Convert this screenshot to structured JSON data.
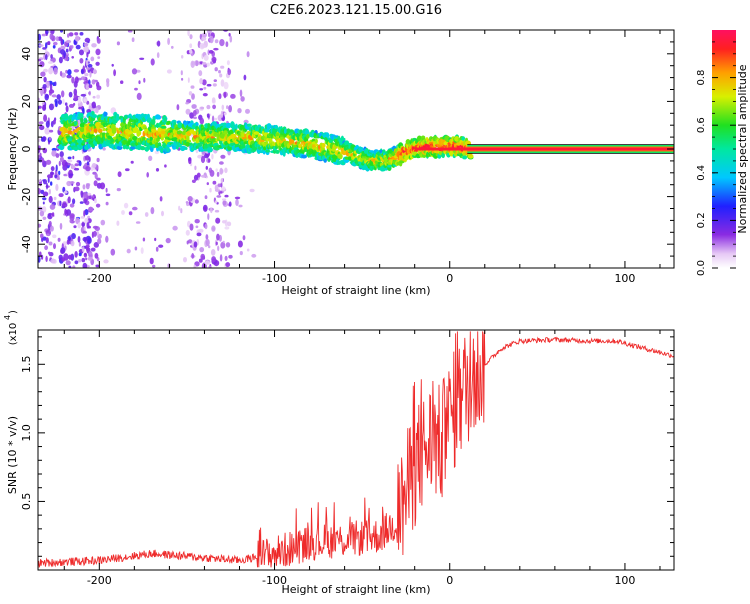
{
  "title": "C2E6.2023.121.15.00.G16",
  "colorbar": {
    "label": "Normalized spectral amplitude",
    "ticks": [
      {
        "value": 0.0,
        "label": "0.0"
      },
      {
        "value": 0.2,
        "label": "0.2"
      },
      {
        "value": 0.4,
        "label": "0.4"
      },
      {
        "value": 0.6,
        "label": "0.6"
      },
      {
        "value": 0.8,
        "label": "0.8"
      }
    ],
    "range": [
      0,
      1
    ],
    "colormap": "rainbow (white-violet to red)"
  },
  "chart_data": [
    {
      "type": "heatmap",
      "xlabel": "Height of straight line (km)",
      "ylabel": "Frequency (Hz)",
      "xlim": [
        -235,
        128
      ],
      "ylim": [
        -50,
        50
      ],
      "xticks": [
        {
          "value": -200,
          "label": "-200"
        },
        {
          "value": -100,
          "label": "-100"
        },
        {
          "value": 0,
          "label": "0"
        },
        {
          "value": 100,
          "label": "100"
        }
      ],
      "yticks": [
        {
          "value": -40,
          "label": "-40"
        },
        {
          "value": -20,
          "label": "-20"
        },
        {
          "value": 0,
          "label": "0"
        },
        {
          "value": 20,
          "label": "20"
        },
        {
          "value": 40,
          "label": "40"
        }
      ],
      "ridge": {
        "x": [
          -220,
          -200,
          -180,
          -160,
          -140,
          -120,
          -100,
          -80,
          -60,
          -45,
          -35,
          -25,
          -15,
          -5,
          5,
          10,
          128
        ],
        "y": [
          7,
          8,
          7,
          6,
          5,
          5,
          4,
          2,
          -1,
          -5,
          -5,
          -1,
          1,
          1,
          1,
          0,
          0
        ]
      }
    },
    {
      "type": "line",
      "xlabel": "Height of straight line (km)",
      "ylabel": "SNR (10 * v/v)",
      "yscale_label": "(x10",
      "yscale_exponent": "4",
      "xlim": [
        -235,
        128
      ],
      "ylim": [
        0,
        1.75
      ],
      "xticks": [
        {
          "value": -200,
          "label": "-200"
        },
        {
          "value": -100,
          "label": "-100"
        },
        {
          "value": 0,
          "label": "0"
        },
        {
          "value": 100,
          "label": "100"
        }
      ],
      "yticks": [
        {
          "value": 0.5,
          "label": "0.5"
        },
        {
          "value": 1.0,
          "label": "1.0"
        },
        {
          "value": 1.5,
          "label": "1.5"
        }
      ],
      "series": [
        {
          "color": "#ee2a2a",
          "x": [
            -235,
            -200,
            -170,
            -150,
            -120,
            -100,
            -80,
            -60,
            -40,
            -30,
            -25,
            -20,
            -15,
            -10,
            -5,
            0,
            10,
            20,
            30,
            40,
            60,
            80,
            95,
            110,
            128
          ],
          "y": [
            0.05,
            0.07,
            0.12,
            0.1,
            0.07,
            0.12,
            0.2,
            0.22,
            0.25,
            0.35,
            0.55,
            0.75,
            0.85,
            0.95,
            0.9,
            1.1,
            1.35,
            1.5,
            1.62,
            1.67,
            1.68,
            1.67,
            1.67,
            1.62,
            1.56
          ]
        }
      ]
    }
  ]
}
